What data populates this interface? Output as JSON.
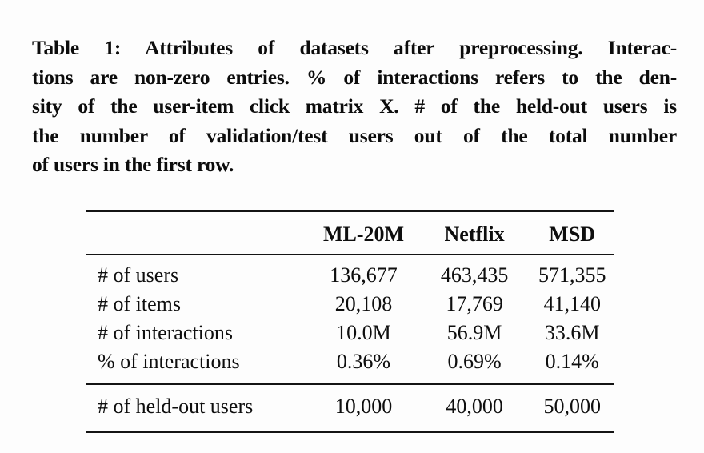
{
  "caption": {
    "lines": [
      "Table 1: Attributes of datasets after preprocessing. Interac-",
      "tions are non-zero entries. % of interactions refers to the den-",
      "sity of the user-item click matrix X. # of the held-out users is",
      "the number of validation/test users out of the total number",
      "of users in the first row."
    ]
  },
  "table": {
    "columns": [
      "ML-20M",
      "Netflix",
      "MSD"
    ],
    "rows": [
      {
        "label": "# of users",
        "values": [
          "136,677",
          "463,435",
          "571,355"
        ]
      },
      {
        "label": "# of items",
        "values": [
          "20,108",
          "17,769",
          "41,140"
        ]
      },
      {
        "label": "# of interactions",
        "values": [
          "10.0M",
          "56.9M",
          "33.6M"
        ]
      },
      {
        "label": "% of interactions",
        "values": [
          "0.36%",
          "0.69%",
          "0.14%"
        ]
      }
    ],
    "footer_row": {
      "label": "# of held-out users",
      "values": [
        "10,000",
        "40,000",
        "50,000"
      ]
    }
  },
  "colors": {
    "background": "#fdfdfd",
    "text": "#0e0e0e",
    "rule": "#141414"
  }
}
